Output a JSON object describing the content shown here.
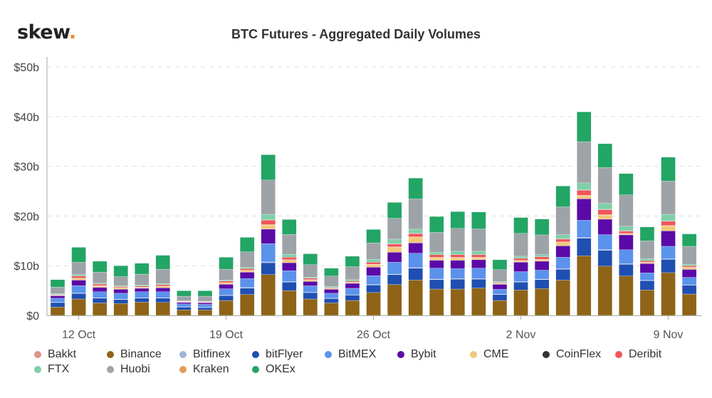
{
  "logo": {
    "text": "skew",
    "dot": "."
  },
  "chart_data": {
    "type": "bar",
    "stacked": true,
    "title": "BTC Futures - Aggregated Daily Volumes",
    "xlabel": "",
    "ylabel": "",
    "ylim": [
      0,
      50
    ],
    "y_ticks": [
      "$0",
      "$10b",
      "$20b",
      "$30b",
      "$40b",
      "$50b"
    ],
    "y_tick_values": [
      0,
      10,
      20,
      30,
      40,
      50
    ],
    "x_ticks": [
      "12 Oct",
      "19 Oct",
      "26 Oct",
      "2 Nov",
      "9 Nov"
    ],
    "x_tick_dates": [
      "2020-10-12",
      "2020-10-19",
      "2020-10-26",
      "2020-11-02",
      "2020-11-09"
    ],
    "grid": true,
    "legend_position": "bottom",
    "categories": [
      "2020-10-11",
      "2020-10-12",
      "2020-10-13",
      "2020-10-14",
      "2020-10-15",
      "2020-10-16",
      "2020-10-17",
      "2020-10-18",
      "2020-10-19",
      "2020-10-20",
      "2020-10-21",
      "2020-10-22",
      "2020-10-23",
      "2020-10-24",
      "2020-10-25",
      "2020-10-26",
      "2020-10-27",
      "2020-10-28",
      "2020-10-29",
      "2020-10-30",
      "2020-10-31",
      "2020-11-01",
      "2020-11-02",
      "2020-11-03",
      "2020-11-04",
      "2020-11-05",
      "2020-11-06",
      "2020-11-07",
      "2020-11-08",
      "2020-11-09",
      "2020-11-10"
    ],
    "series": [
      {
        "name": "Bakkt",
        "color": "#e0928a",
        "values": [
          0,
          0,
          0,
          0,
          0,
          0,
          0,
          0,
          0,
          0,
          0.02,
          0,
          0,
          0,
          0,
          0,
          0.02,
          0.02,
          0,
          0,
          0,
          0,
          0,
          0,
          0.02,
          0.03,
          0.03,
          0.02,
          0,
          0.02,
          0
        ]
      },
      {
        "name": "Binance",
        "color": "#8f6418",
        "values": [
          1.7,
          3.3,
          2.5,
          2.4,
          2.7,
          2.6,
          1.1,
          1.1,
          3.0,
          4.2,
          8.2,
          5.0,
          3.3,
          2.5,
          3.0,
          4.6,
          6.2,
          7.1,
          5.3,
          5.3,
          5.5,
          3.0,
          5.1,
          5.4,
          7.1,
          12.0,
          9.9,
          7.9,
          5.1,
          8.6,
          4.3
        ]
      },
      {
        "name": "Bitfinex",
        "color": "#9fb4d8",
        "values": [
          0.05,
          0.1,
          0.05,
          0.05,
          0.05,
          0.05,
          0.03,
          0.03,
          0.05,
          0.1,
          0.15,
          0.1,
          0.05,
          0.05,
          0.05,
          0.1,
          0.1,
          0.1,
          0.1,
          0.1,
          0.1,
          0.05,
          0.1,
          0.1,
          0.1,
          0.15,
          0.15,
          0.1,
          0.05,
          0.1,
          0.05
        ]
      },
      {
        "name": "bitFlyer",
        "color": "#1f4fb0",
        "values": [
          0.9,
          1.1,
          1.0,
          0.8,
          0.8,
          0.9,
          0.6,
          0.5,
          1.0,
          1.3,
          2.4,
          1.7,
          1.3,
          0.9,
          1.1,
          1.5,
          2.0,
          2.4,
          1.9,
          2.0,
          1.8,
          1.2,
          1.6,
          1.8,
          2.2,
          3.5,
          3.2,
          2.4,
          1.9,
          2.7,
          1.8
        ]
      },
      {
        "name": "BitMEX",
        "color": "#5b92ec",
        "values": [
          0.8,
          1.5,
          1.2,
          1.2,
          1.2,
          1.2,
          0.6,
          0.6,
          1.3,
          1.8,
          3.7,
          2.2,
          1.3,
          1.0,
          1.3,
          1.8,
          2.4,
          2.9,
          2.2,
          2.0,
          2.1,
          1.0,
          2.0,
          1.8,
          2.3,
          3.5,
          3.0,
          2.8,
          1.5,
          2.5,
          1.5
        ]
      },
      {
        "name": "Bybit",
        "color": "#5b0aa8",
        "values": [
          0.5,
          1.1,
          0.9,
          0.8,
          0.7,
          0.8,
          0.3,
          0.3,
          0.9,
          1.3,
          2.9,
          1.6,
          0.9,
          0.8,
          1.0,
          1.7,
          2.0,
          2.1,
          1.6,
          1.7,
          1.7,
          1.0,
          1.9,
          1.8,
          2.3,
          4.3,
          3.1,
          3.0,
          1.9,
          3.1,
          1.6
        ]
      },
      {
        "name": "CME",
        "color": "#f0c97a",
        "values": [
          0.1,
          0.3,
          0.3,
          0.3,
          0.2,
          0.3,
          0.1,
          0.1,
          0.3,
          0.3,
          0.8,
          0.5,
          0.3,
          0.2,
          0.2,
          0.5,
          1.0,
          1.1,
          0.5,
          0.5,
          0.4,
          0.2,
          0.3,
          0.3,
          0.7,
          0.6,
          0.8,
          0.2,
          0.2,
          1.0,
          0.4
        ]
      },
      {
        "name": "CoinFlex",
        "color": "#333333",
        "values": [
          0,
          0,
          0,
          0,
          0,
          0,
          0,
          0,
          0,
          0,
          0.02,
          0,
          0,
          0,
          0,
          0,
          0.02,
          0.02,
          0,
          0,
          0,
          0,
          0,
          0,
          0.02,
          0.03,
          0.03,
          0.02,
          0,
          0.02,
          0
        ]
      },
      {
        "name": "Deribit",
        "color": "#f2545b",
        "values": [
          0.1,
          0.4,
          0.3,
          0.2,
          0.2,
          0.3,
          0.1,
          0.1,
          0.3,
          0.3,
          0.9,
          0.5,
          0.3,
          0.1,
          0.2,
          0.4,
          0.6,
          0.7,
          0.5,
          0.5,
          0.5,
          0.1,
          0.4,
          0.5,
          0.6,
          1.0,
          1.0,
          0.5,
          0.3,
          0.9,
          0.3
        ]
      },
      {
        "name": "FTX",
        "color": "#7fcfa8",
        "values": [
          0.2,
          0.3,
          0.2,
          0.2,
          0.2,
          0.2,
          0.1,
          0.1,
          0.2,
          0.3,
          1.1,
          0.6,
          0.2,
          0.2,
          0.3,
          0.6,
          0.9,
          0.8,
          0.5,
          0.7,
          0.7,
          0.2,
          0.4,
          0.4,
          0.8,
          1.4,
          1.2,
          0.9,
          0.4,
          1.3,
          0.3
        ]
      },
      {
        "name": "Huobi",
        "color": "#9ea3a8",
        "values": [
          1.3,
          2.5,
          2.2,
          1.8,
          2.2,
          2.9,
          0.9,
          1.0,
          2.2,
          3.1,
          6.9,
          4.0,
          2.5,
          2.1,
          2.6,
          3.3,
          4.2,
          6.1,
          4.0,
          4.6,
          4.5,
          2.4,
          4.6,
          4.0,
          5.6,
          8.3,
          7.2,
          6.3,
          3.6,
          6.7,
          3.6
        ]
      },
      {
        "name": "Kraken",
        "color": "#e39a5a",
        "values": [
          0.05,
          0.1,
          0.05,
          0.05,
          0.05,
          0.05,
          0.03,
          0.03,
          0.05,
          0.1,
          0.15,
          0.1,
          0.05,
          0.05,
          0.05,
          0.1,
          0.1,
          0.1,
          0.1,
          0.1,
          0.1,
          0.05,
          0.1,
          0.1,
          0.1,
          0.15,
          0.15,
          0.1,
          0.05,
          0.1,
          0.05
        ]
      },
      {
        "name": "OKEx",
        "color": "#23a566",
        "values": [
          1.5,
          3.0,
          2.2,
          2.2,
          2.2,
          2.8,
          1.1,
          1.1,
          2.4,
          2.9,
          5.1,
          3.0,
          2.2,
          1.6,
          2.1,
          2.7,
          3.2,
          4.2,
          3.2,
          3.4,
          3.4,
          2.0,
          3.2,
          3.2,
          4.2,
          6.0,
          4.8,
          4.3,
          2.8,
          4.8,
          2.5
        ]
      }
    ]
  }
}
